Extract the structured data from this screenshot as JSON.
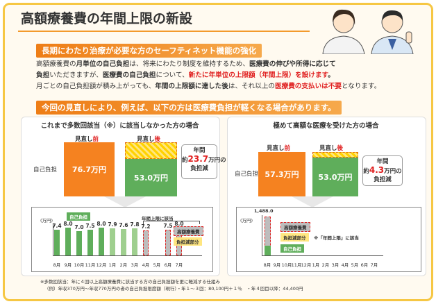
{
  "header": {
    "title": "高額療養費の年間上限の新設"
  },
  "section1": {
    "heading": "長期にわたり治療が必要な方のセーフティネット機能の強化",
    "lines": [
      [
        {
          "t": "高額療養費の"
        },
        {
          "t": "月単位の自己負担",
          "bold": true
        },
        {
          "t": "は、将来にわたり制度を維持するため、"
        },
        {
          "t": "医療費の伸びや所得に応じて",
          "bold": true
        }
      ],
      [
        {
          "t": "負担",
          "bold": true
        },
        {
          "t": "いただきますが、"
        },
        {
          "t": "医療費の自己負担",
          "bold": true
        },
        {
          "t": "について、"
        },
        {
          "t": "新たに年単位の上限額（年間上限）を設けます",
          "bold": true,
          "red": true
        },
        {
          "t": "。",
          "bold": true
        }
      ],
      [
        {
          "t": "月ごとの自己負担額が積み上がっても、"
        },
        {
          "t": "年間の上限額に達した後",
          "bold": true
        },
        {
          "t": "は、それ以上の"
        },
        {
          "t": "医療費の支払いは不要",
          "bold": true,
          "red": true
        },
        {
          "t": "となります。"
        }
      ]
    ]
  },
  "section2": {
    "heading": "今回の見直しにより、例えば、以下の方は医療費負担が軽くなる場合があります。"
  },
  "panels": [
    {
      "title": "これまで多数回該当（※）に該当しなかった方の場合",
      "before_label": {
        "text": "見直し",
        "mark": "前"
      },
      "after_label": {
        "text": "見直し",
        "mark": "後"
      },
      "axis_label": "自己負担",
      "before_value": "76.7万円",
      "after_value": "53.0万円",
      "callout": {
        "line1": "年間",
        "prefix": "約",
        "amount": "23.7",
        "suffix": "万円の",
        "line3": "負担減"
      },
      "detail": {
        "unit": "(万円)",
        "months": [
          "8月",
          "9月",
          "10月",
          "11月",
          "12月",
          "1月",
          "2月",
          "3月",
          "4月",
          "5月",
          "6月",
          "7月"
        ],
        "values": [
          "7.4",
          "8.0",
          "7.0",
          "7.5",
          "8.0",
          "7.9",
          "7.6",
          "7.8",
          "7.2",
          null,
          "7.5",
          "8.0"
        ],
        "legend": [
          "自己負担",
          "年間上限に該当",
          "高額療養費",
          "負担減部分"
        ]
      }
    },
    {
      "title": "極めて高額な医療を受けた方の場合",
      "before_label": {
        "text": "見直し",
        "mark": "前"
      },
      "after_label": {
        "text": "見直し",
        "mark": "後"
      },
      "axis_label": "自己負担",
      "before_value": "57.3万円",
      "after_value": "53.0万円",
      "callout": {
        "line1": "年間",
        "prefix": "約",
        "amount": "4.3",
        "suffix": "万円の",
        "line3": "負担減"
      },
      "detail": {
        "unit": "(万円)",
        "peak": "1,488.0",
        "months": [
          "8月",
          "9月",
          "10月",
          "11月",
          "12月",
          "1月",
          "2月",
          "3月",
          "4月",
          "5月",
          "6月",
          "7月"
        ],
        "legend": [
          "高額療養費",
          "負担減部分",
          "自己負担",
          "※「年間上限」に該当"
        ]
      }
    }
  ],
  "footnotes": [
    "※多数回該当：年に４回以上高額療養費に該当する方の自己負担額を更に軽減する仕組み",
    "（例）年収370万円〜年収770万円の者の自己負担限度額（現行）・年１〜３回：80,100円＋１％　・年４回目以降：44,400円"
  ]
}
